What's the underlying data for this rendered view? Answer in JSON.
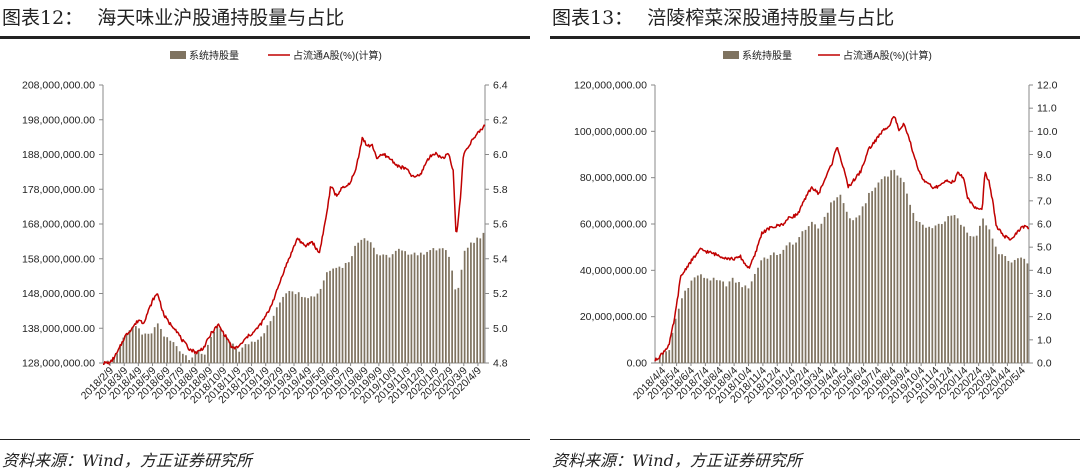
{
  "panels": [
    {
      "title_label": "图表12：",
      "title_text": "海天味业沪股通持股量与占比",
      "source": "资料来源：Wind，方正证券研究所"
    },
    {
      "title_label": "图表13：",
      "title_text": "涪陵榨菜深股通持股量与占比",
      "source": "资料来源：Wind，方正证券研究所"
    }
  ],
  "chart_data": [
    {
      "type": "bar",
      "combo": "bar+line",
      "legend_position": "top",
      "series": [
        {
          "name": "系统持股量",
          "kind": "bar",
          "axis": "left",
          "color": "#7f7360"
        },
        {
          "name": "占流通A股(%)(计算)",
          "kind": "line",
          "axis": "right",
          "color": "#c00000"
        }
      ],
      "x_tick_labels": [
        "2018/2/9",
        "2018/3/9",
        "2018/4/9",
        "2018/5/9",
        "2018/6/9",
        "2018/7/9",
        "2018/8/9",
        "2018/9/9",
        "2018/10/9",
        "2018/11/9",
        "2018/12/9",
        "2019/1/9",
        "2019/2/9",
        "2019/3/9",
        "2019/4/9",
        "2019/5/9",
        "2019/6/9",
        "2019/7/9",
        "2019/8/9",
        "2019/9/9",
        "2019/10/9",
        "2019/11/9",
        "2019/12/9",
        "2020/1/9",
        "2020/2/9",
        "2020/3/9",
        "2020/4/9"
      ],
      "y_left": {
        "ticks": [
          "128,000,000.00",
          "138,000,000.00",
          "148,000,000.00",
          "158,000,000.00",
          "168,000,000.00",
          "178,000,000.00",
          "188,000,000.00",
          "198,000,000.00",
          "208,000,000.00"
        ],
        "min": 128000000,
        "max": 208000000
      },
      "y_right": {
        "ticks": [
          "4.8",
          "5.0",
          "5.2",
          "5.4",
          "5.6",
          "5.8",
          "6.0",
          "6.2",
          "6.4"
        ],
        "min": 4.8,
        "max": 6.4
      },
      "bar_keypoints": [
        [
          0,
          128000000
        ],
        [
          0.5,
          128100000
        ],
        [
          1,
          131000000
        ],
        [
          1.5,
          136000000
        ],
        [
          2,
          138500000
        ],
        [
          2.5,
          137500000
        ],
        [
          3,
          135500000
        ],
        [
          3.5,
          137000000
        ],
        [
          3.8,
          139500000
        ],
        [
          4.2,
          136000000
        ],
        [
          4.6,
          134500000
        ],
        [
          5,
          133500000
        ],
        [
          5.5,
          131000000
        ],
        [
          6,
          129500000
        ],
        [
          6.5,
          131000000
        ],
        [
          7,
          130000000
        ],
        [
          7.5,
          136000000
        ],
        [
          8,
          138000000
        ],
        [
          8.5,
          135500000
        ],
        [
          9,
          133000000
        ],
        [
          9.5,
          131500000
        ],
        [
          10,
          133500000
        ],
        [
          10.5,
          134500000
        ],
        [
          11,
          136000000
        ],
        [
          11.5,
          139000000
        ],
        [
          12,
          143000000
        ],
        [
          12.5,
          147500000
        ],
        [
          13,
          149500000
        ],
        [
          13.5,
          148000000
        ],
        [
          14,
          147500000
        ],
        [
          14.5,
          147000000
        ],
        [
          15,
          148500000
        ],
        [
          15.5,
          154000000
        ],
        [
          16,
          156000000
        ],
        [
          16.5,
          155500000
        ],
        [
          17,
          157000000
        ],
        [
          17.5,
          161500000
        ],
        [
          18,
          164500000
        ],
        [
          18.5,
          163500000
        ],
        [
          19,
          159500000
        ],
        [
          19.5,
          158500000
        ],
        [
          20,
          159000000
        ],
        [
          20.5,
          160500000
        ],
        [
          21,
          159500000
        ],
        [
          21.5,
          160000000
        ],
        [
          22,
          159000000
        ],
        [
          22.5,
          160500000
        ],
        [
          23,
          160500000
        ],
        [
          23.5,
          161000000
        ],
        [
          24,
          159000000
        ],
        [
          24.5,
          148500000
        ],
        [
          24.8,
          152000000
        ],
        [
          25,
          160000000
        ],
        [
          25.5,
          162000000
        ],
        [
          26,
          163500000
        ],
        [
          26.5,
          165500000
        ]
      ],
      "line_keypoints": [
        [
          0,
          4.8
        ],
        [
          0.5,
          4.8
        ],
        [
          1,
          4.86
        ],
        [
          1.5,
          4.95
        ],
        [
          2,
          5.0
        ],
        [
          2.5,
          5.05
        ],
        [
          2.8,
          5.03
        ],
        [
          3.2,
          5.11
        ],
        [
          3.5,
          5.17
        ],
        [
          3.8,
          5.2
        ],
        [
          4.2,
          5.08
        ],
        [
          4.6,
          5.03
        ],
        [
          5,
          5.0
        ],
        [
          5.5,
          4.93
        ],
        [
          6,
          4.88
        ],
        [
          6.5,
          4.86
        ],
        [
          7,
          4.89
        ],
        [
          7.5,
          4.97
        ],
        [
          8,
          5.02
        ],
        [
          8.3,
          4.98
        ],
        [
          8.7,
          4.93
        ],
        [
          9,
          4.88
        ],
        [
          9.5,
          4.9
        ],
        [
          10,
          4.95
        ],
        [
          10.5,
          4.98
        ],
        [
          11,
          5.03
        ],
        [
          11.5,
          5.1
        ],
        [
          12,
          5.2
        ],
        [
          12.5,
          5.32
        ],
        [
          13,
          5.42
        ],
        [
          13.5,
          5.52
        ],
        [
          14,
          5.47
        ],
        [
          14.5,
          5.5
        ],
        [
          15,
          5.43
        ],
        [
          15.5,
          5.65
        ],
        [
          15.8,
          5.82
        ],
        [
          16.2,
          5.76
        ],
        [
          16.5,
          5.8
        ],
        [
          17,
          5.82
        ],
        [
          17.5,
          5.9
        ],
        [
          18,
          6.1
        ],
        [
          18.3,
          6.05
        ],
        [
          18.7,
          6.05
        ],
        [
          19,
          5.98
        ],
        [
          19.5,
          6.0
        ],
        [
          20,
          5.97
        ],
        [
          20.5,
          5.93
        ],
        [
          21,
          5.92
        ],
        [
          21.5,
          5.87
        ],
        [
          22,
          5.88
        ],
        [
          22.5,
          5.97
        ],
        [
          23,
          6.01
        ],
        [
          23.5,
          5.98
        ],
        [
          24,
          6.0
        ],
        [
          24.3,
          5.9
        ],
        [
          24.5,
          5.52
        ],
        [
          24.8,
          5.75
        ],
        [
          25,
          6.0
        ],
        [
          25.5,
          6.07
        ],
        [
          26,
          6.12
        ],
        [
          26.5,
          6.17
        ]
      ],
      "x_domain": [
        0,
        26.5
      ]
    },
    {
      "type": "bar",
      "combo": "bar+line",
      "legend_position": "top",
      "series": [
        {
          "name": "系统持股量",
          "kind": "bar",
          "axis": "left",
          "color": "#7f7360"
        },
        {
          "name": "占流通A股(%)(计算)",
          "kind": "line",
          "axis": "right",
          "color": "#c00000"
        }
      ],
      "x_tick_labels": [
        "2018/4/4",
        "2018/5/4",
        "2018/6/4",
        "2018/7/4",
        "2018/8/4",
        "2018/9/4",
        "2018/10/4",
        "2018/11/4",
        "2018/12/4",
        "2019/1/4",
        "2019/2/4",
        "2019/3/4",
        "2019/4/4",
        "2019/5/4",
        "2019/6/4",
        "2019/7/4",
        "2019/8/4",
        "2019/9/4",
        "2019/10/4",
        "2019/11/4",
        "2019/12/4",
        "2020/1/4",
        "2020/2/4",
        "2020/3/4",
        "2020/4/4",
        "2020/5/4"
      ],
      "y_left": {
        "ticks": [
          "0.00",
          "20,000,000.00",
          "40,000,000.00",
          "60,000,000.00",
          "80,000,000.00",
          "100,000,000.00",
          "120,000,000.00"
        ],
        "min": 0,
        "max": 120000000
      },
      "y_right": {
        "ticks": [
          "0.0",
          "1.0",
          "2.0",
          "3.0",
          "4.0",
          "5.0",
          "6.0",
          "7.0",
          "8.0",
          "9.0",
          "10.0",
          "11.0",
          "12.0"
        ],
        "min": 0,
        "max": 12
      },
      "bar_keypoints": [
        [
          0,
          0
        ],
        [
          0.5,
          4000000
        ],
        [
          1,
          6000000
        ],
        [
          1.5,
          20000000
        ],
        [
          2,
          30000000
        ],
        [
          2.5,
          35000000
        ],
        [
          3,
          38000000
        ],
        [
          3.5,
          37000000
        ],
        [
          4,
          36000000
        ],
        [
          4.5,
          35000000
        ],
        [
          5,
          34000000
        ],
        [
          5.5,
          36000000
        ],
        [
          6,
          34000000
        ],
        [
          6.5,
          32000000
        ],
        [
          7,
          38000000
        ],
        [
          7.5,
          45000000
        ],
        [
          8,
          46000000
        ],
        [
          8.5,
          47000000
        ],
        [
          9,
          48000000
        ],
        [
          9.5,
          52000000
        ],
        [
          10,
          52000000
        ],
        [
          10.5,
          58000000
        ],
        [
          11,
          60000000
        ],
        [
          11.5,
          58000000
        ],
        [
          12,
          64000000
        ],
        [
          12.5,
          70000000
        ],
        [
          13,
          73000000
        ],
        [
          13.5,
          65000000
        ],
        [
          14,
          60000000
        ],
        [
          14.5,
          66000000
        ],
        [
          15,
          72000000
        ],
        [
          15.5,
          76000000
        ],
        [
          16,
          80000000
        ],
        [
          16.5,
          82000000
        ],
        [
          16.8,
          84000000
        ],
        [
          17.2,
          80000000
        ],
        [
          17.6,
          76000000
        ],
        [
          18,
          68000000
        ],
        [
          18.3,
          62000000
        ],
        [
          18.7,
          60000000
        ],
        [
          19,
          58000000
        ],
        [
          19.5,
          59000000
        ],
        [
          20,
          60000000
        ],
        [
          20.5,
          62000000
        ],
        [
          21,
          64000000
        ],
        [
          21.5,
          60000000
        ],
        [
          22,
          56000000
        ],
        [
          22.5,
          54000000
        ],
        [
          23,
          62000000
        ],
        [
          23.3,
          60000000
        ],
        [
          23.7,
          54000000
        ],
        [
          24,
          49000000
        ],
        [
          24.5,
          46000000
        ],
        [
          25,
          43000000
        ],
        [
          25.5,
          45000000
        ],
        [
          26,
          44000000
        ]
      ],
      "line_keypoints": [
        [
          0,
          0.1
        ],
        [
          0.5,
          0.4
        ],
        [
          1,
          0.8
        ],
        [
          1.4,
          2.0
        ],
        [
          1.8,
          3.7
        ],
        [
          2.3,
          4.2
        ],
        [
          2.8,
          4.6
        ],
        [
          3.2,
          4.9
        ],
        [
          3.7,
          4.8
        ],
        [
          4.2,
          4.7
        ],
        [
          4.7,
          4.6
        ],
        [
          5.2,
          4.5
        ],
        [
          5.7,
          4.5
        ],
        [
          6,
          4.6
        ],
        [
          6.3,
          4.3
        ],
        [
          6.6,
          4.1
        ],
        [
          7,
          4.6
        ],
        [
          7.5,
          5.6
        ],
        [
          8,
          5.8
        ],
        [
          8.5,
          5.9
        ],
        [
          9,
          6.0
        ],
        [
          9.5,
          6.3
        ],
        [
          10,
          6.4
        ],
        [
          10.5,
          7.0
        ],
        [
          11,
          7.6
        ],
        [
          11.5,
          7.3
        ],
        [
          12,
          8.0
        ],
        [
          12.5,
          8.7
        ],
        [
          12.8,
          9.4
        ],
        [
          13.2,
          8.5
        ],
        [
          13.6,
          7.6
        ],
        [
          14,
          7.9
        ],
        [
          14.5,
          8.3
        ],
        [
          15,
          9.2
        ],
        [
          15.5,
          9.6
        ],
        [
          16,
          10.0
        ],
        [
          16.5,
          10.3
        ],
        [
          16.8,
          10.7
        ],
        [
          17.2,
          10.0
        ],
        [
          17.5,
          10.3
        ],
        [
          17.8,
          9.8
        ],
        [
          18.2,
          9.0
        ],
        [
          18.6,
          8.2
        ],
        [
          19,
          7.8
        ],
        [
          19.5,
          7.6
        ],
        [
          20,
          7.6
        ],
        [
          20.5,
          7.9
        ],
        [
          21,
          7.8
        ],
        [
          21.3,
          8.2
        ],
        [
          21.7,
          8.0
        ],
        [
          22,
          7.1
        ],
        [
          22.5,
          6.7
        ],
        [
          23,
          6.6
        ],
        [
          23.2,
          8.2
        ],
        [
          23.5,
          7.8
        ],
        [
          23.8,
          6.8
        ],
        [
          24,
          5.9
        ],
        [
          24.5,
          5.5
        ],
        [
          25,
          5.3
        ],
        [
          25.5,
          5.7
        ],
        [
          26,
          5.9
        ],
        [
          26.3,
          5.8
        ]
      ],
      "x_domain": [
        0,
        26.3
      ]
    }
  ]
}
